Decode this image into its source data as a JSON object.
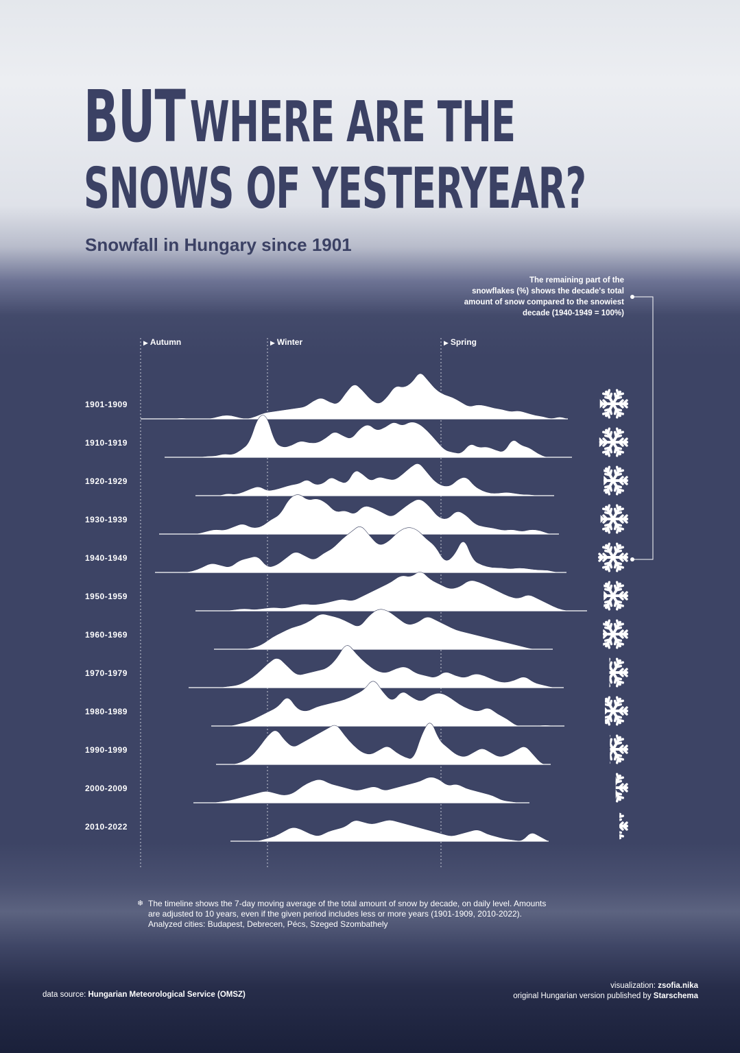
{
  "title": {
    "word1": "BUT",
    "rest1": "WHERE ARE THE",
    "line2": "SNOWS OF YESTERYEAR?"
  },
  "subtitle": "Snowfall in Hungary since 1901",
  "annotation": {
    "lines": [
      "The remaining part of the",
      "snowflakes (%) shows the decade's total",
      "amount of snow compared to the snowiest",
      "decade  (1940-1949 = 100%)"
    ]
  },
  "seasons": [
    "Autumn",
    "Winter",
    "Spring"
  ],
  "footnote": {
    "icon": "snowflake-icon",
    "lines": [
      "The timeline shows the 7-day moving average of the total amount of snow by decade, on daily level. Amounts",
      "are adjusted to 10 years, even if the given period includes less or more years (1901-1909, 2010-2022).",
      "Analyzed cities: Budapest, Debrecen, Pécs, Szeged Szombathely"
    ]
  },
  "source": {
    "label": "data source: ",
    "name": "Hungarian Meteorological Service (OMSZ)"
  },
  "credits": {
    "viz_label": "visualization: ",
    "viz_name": "zsofia.nika",
    "pub_label": "original Hungarian version published by ",
    "pub_name": "Starschema"
  },
  "colors": {
    "background_dark": "#3d4465",
    "title_color": "#3b4164",
    "ridge_fill": "#ffffff",
    "peak_line": "#3d4465"
  },
  "chart_data": {
    "type": "area",
    "subtype": "ridgeline",
    "x_description": "day of the season",
    "season_markers": [
      "Autumn",
      "Winter",
      "Spring"
    ],
    "relative_snowiest_decade": "1940-1949",
    "series": [
      {
        "name": "1901-1909",
        "snowflake_percent": 92,
        "profile": [
          0,
          0,
          0,
          0,
          0,
          1,
          0,
          0,
          0,
          1,
          3,
          3,
          1,
          0,
          2,
          5,
          6,
          7,
          8,
          9,
          10,
          15,
          18,
          14,
          12,
          22,
          30,
          24,
          16,
          12,
          18,
          28,
          26,
          30,
          40,
          32,
          24,
          20,
          18,
          14,
          10,
          12,
          11,
          9,
          8,
          6,
          7,
          5,
          3,
          2,
          0,
          2,
          0
        ],
        "cutouts": [
          [
            0.0,
            0.03
          ],
          [
            0.12,
            0.14
          ]
        ]
      },
      {
        "name": "1910-1919",
        "snowflake_percent": 94,
        "profile": [
          0,
          0,
          0,
          0,
          0,
          1,
          1,
          3,
          2,
          6,
          12,
          34,
          36,
          12,
          8,
          10,
          14,
          12,
          12,
          16,
          22,
          18,
          15,
          24,
          28,
          22,
          25,
          30,
          26,
          30,
          28,
          22,
          14,
          6,
          4,
          3,
          12,
          8,
          9,
          6,
          4,
          16,
          10,
          8,
          3,
          0,
          0,
          0,
          0
        ],
        "cutouts": []
      },
      {
        "name": "1920-1929",
        "snowflake_percent": 80,
        "profile": [
          0,
          0,
          0,
          0,
          2,
          1,
          3,
          6,
          8,
          4,
          5,
          7,
          9,
          10,
          14,
          9,
          10,
          16,
          12,
          10,
          22,
          18,
          12,
          16,
          14,
          13,
          18,
          24,
          28,
          20,
          12,
          8,
          8,
          14,
          16,
          8,
          4,
          2,
          2,
          3,
          2,
          1,
          1,
          0,
          0,
          0
        ],
        "cutouts": []
      },
      {
        "name": "1930-1939",
        "snowflake_percent": 90,
        "profile": [
          0,
          0,
          0,
          0,
          0,
          2,
          4,
          3,
          6,
          9,
          5,
          6,
          12,
          16,
          30,
          34,
          28,
          30,
          26,
          18,
          20,
          16,
          24,
          22,
          18,
          14,
          20,
          26,
          30,
          24,
          14,
          12,
          20,
          16,
          8,
          6,
          5,
          3,
          4,
          2,
          4,
          3,
          0,
          0
        ],
        "cutouts": []
      },
      {
        "name": "1940-1949",
        "snowflake_percent": 100,
        "profile": [
          0,
          0,
          0,
          0,
          1,
          4,
          8,
          6,
          4,
          10,
          12,
          14,
          4,
          6,
          12,
          18,
          14,
          10,
          16,
          20,
          28,
          34,
          40,
          30,
          22,
          26,
          34,
          38,
          36,
          28,
          22,
          8,
          14,
          30,
          10,
          6,
          4,
          4,
          3,
          4,
          3,
          2,
          2,
          0,
          0
        ],
        "cutouts": []
      },
      {
        "name": "1950-1959",
        "snowflake_percent": 80,
        "profile": [
          0,
          0,
          0,
          0,
          1,
          2,
          1,
          2,
          3,
          2,
          4,
          6,
          5,
          6,
          8,
          10,
          8,
          12,
          16,
          20,
          24,
          30,
          28,
          34,
          26,
          22,
          18,
          20,
          26,
          24,
          20,
          16,
          12,
          10,
          14,
          10,
          6,
          2,
          0,
          0,
          0
        ],
        "cutouts": []
      },
      {
        "name": "1960-1969",
        "snowflake_percent": 82,
        "profile": [
          0,
          0,
          0,
          0,
          1,
          4,
          10,
          14,
          18,
          20,
          24,
          30,
          28,
          26,
          22,
          18,
          28,
          34,
          32,
          26,
          20,
          22,
          28,
          24,
          20,
          16,
          14,
          12,
          10,
          8,
          6,
          4,
          2,
          0,
          0,
          0
        ],
        "cutouts": []
      },
      {
        "name": "1970-1979",
        "snowflake_percent": 62,
        "profile": [
          0,
          0,
          0,
          0,
          1,
          2,
          6,
          12,
          20,
          26,
          18,
          10,
          12,
          14,
          16,
          24,
          38,
          28,
          20,
          14,
          12,
          16,
          18,
          12,
          10,
          8,
          14,
          10,
          8,
          12,
          10,
          6,
          4,
          6,
          10,
          4,
          2,
          0,
          0
        ],
        "cutouts": []
      },
      {
        "name": "1980-1989",
        "snowflake_percent": 76,
        "profile": [
          0,
          0,
          0,
          2,
          4,
          8,
          12,
          16,
          26,
          14,
          12,
          16,
          18,
          20,
          22,
          26,
          30,
          40,
          28,
          20,
          30,
          24,
          20,
          26,
          28,
          24,
          18,
          14,
          12,
          16,
          10,
          6,
          0,
          0,
          0,
          1,
          0,
          0
        ],
        "cutouts": []
      },
      {
        "name": "1990-1999",
        "snowflake_percent": 60,
        "profile": [
          0,
          0,
          0,
          2,
          6,
          14,
          24,
          30,
          20,
          14,
          18,
          22,
          26,
          30,
          34,
          24,
          16,
          10,
          8,
          12,
          16,
          10,
          6,
          4,
          26,
          38,
          20,
          14,
          8,
          6,
          10,
          14,
          10,
          6,
          8,
          12,
          16,
          8,
          0,
          0
        ],
        "cutouts": []
      },
      {
        "name": "2000-2009",
        "snowflake_percent": 42,
        "profile": [
          0,
          0,
          0,
          1,
          2,
          4,
          6,
          8,
          10,
          8,
          6,
          8,
          14,
          18,
          20,
          16,
          14,
          12,
          10,
          12,
          14,
          10,
          12,
          14,
          16,
          18,
          22,
          20,
          14,
          16,
          12,
          10,
          8,
          6,
          2,
          1,
          0,
          0
        ],
        "cutouts": []
      },
      {
        "name": "2010-2022",
        "snowflake_percent": 30,
        "profile": [
          0,
          0,
          0,
          0,
          2,
          4,
          8,
          12,
          10,
          6,
          4,
          8,
          10,
          12,
          18,
          16,
          14,
          16,
          18,
          16,
          14,
          12,
          10,
          8,
          6,
          4,
          6,
          8,
          10,
          6,
          4,
          2,
          1,
          0,
          8,
          4,
          0
        ],
        "cutouts": []
      }
    ]
  }
}
